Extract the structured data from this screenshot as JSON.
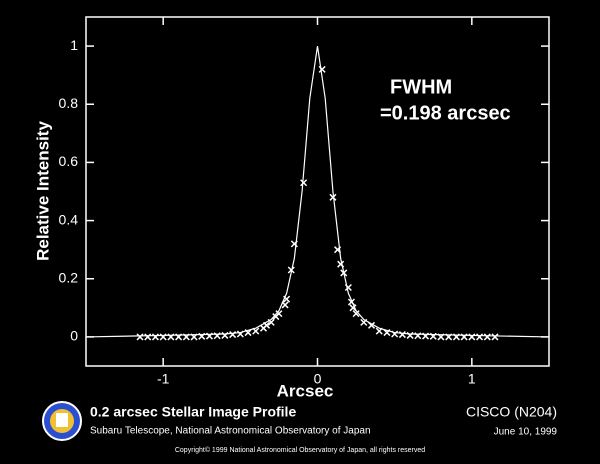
{
  "chart_data": {
    "type": "scatter",
    "xlabel": "Arcsec",
    "ylabel": "Relative Intensity",
    "annotations": [
      "FWHM",
      "=0.198 arcsec"
    ],
    "xlim": [
      -1.5,
      1.5
    ],
    "xticks": [
      -1,
      0,
      1
    ],
    "ylim": [
      -0.1,
      1.1
    ],
    "yticks": [
      0,
      0.2,
      0.4,
      0.6,
      0.8,
      1
    ],
    "series": [
      {
        "type": "line",
        "color": "#ffffff",
        "x": [
          -1.5,
          -1,
          -0.6,
          -0.5,
          -0.4,
          -0.3,
          -0.25,
          -0.2,
          -0.15,
          -0.1,
          -0.05,
          0,
          0.05,
          0.1,
          0.15,
          0.2,
          0.25,
          0.3,
          0.4,
          0.5,
          0.6,
          1,
          1.5
        ],
        "values": [
          0,
          0.005,
          0.01,
          0.015,
          0.03,
          0.06,
          0.09,
          0.15,
          0.27,
          0.5,
          0.82,
          1,
          0.82,
          0.5,
          0.27,
          0.15,
          0.09,
          0.06,
          0.03,
          0.015,
          0.01,
          0.005,
          0
        ]
      },
      {
        "type": "scatter",
        "color": "#ffffff",
        "x": [
          0.03,
          -0.09,
          0.1,
          -0.15,
          0.13,
          -0.17,
          0.15,
          0.17,
          0.2,
          -0.2,
          -0.21,
          0.22,
          0.23,
          -0.25,
          -0.27,
          0.25,
          -0.3,
          -0.33,
          0.3,
          0.35,
          -0.35,
          -0.4,
          0.4,
          -0.45,
          0.45,
          -0.5,
          0.5,
          -0.55,
          0.55,
          -0.6,
          0.6,
          -0.65,
          0.65,
          -0.7,
          0.7,
          -0.75,
          0.75,
          -0.8,
          0.8,
          -0.85,
          0.85,
          -0.9,
          0.9,
          -0.95,
          0.95,
          -1,
          1,
          -1.05,
          1.05,
          -1.1,
          1.1,
          -1.15,
          1.15
        ],
        "values": [
          0.92,
          0.53,
          0.48,
          0.32,
          0.3,
          0.23,
          0.25,
          0.22,
          0.17,
          0.13,
          0.11,
          0.12,
          0.1,
          0.08,
          0.07,
          0.08,
          0.05,
          0.04,
          0.05,
          0.04,
          0.03,
          0.02,
          0.02,
          0.015,
          0.015,
          0.01,
          0.01,
          0.008,
          0.008,
          0.005,
          0.005,
          0.004,
          0.004,
          0.003,
          0.003,
          0.002,
          0.002,
          0,
          0,
          0,
          0,
          0,
          0,
          0,
          0,
          0,
          0,
          0,
          0,
          0,
          0,
          0,
          0
        ]
      }
    ]
  },
  "footer": {
    "title": "0.2 arcsec Stellar Image Profile",
    "subtitle": "Subaru Telescope, National Astronomical Observatory of Japan",
    "instrument": "CISCO (N204)",
    "date": "June 10, 1999",
    "copyright": "Copyright© 1999 National Astronomical Observatory of Japan, all rights reserved"
  }
}
